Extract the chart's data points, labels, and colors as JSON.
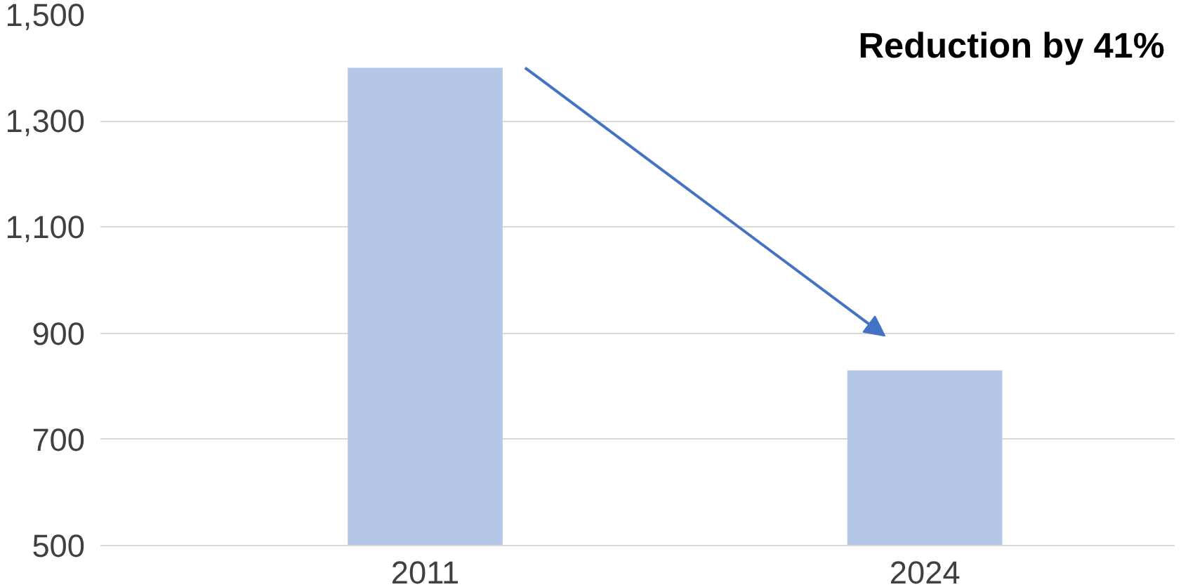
{
  "chart_data": {
    "type": "bar",
    "categories": [
      "2011",
      "2024"
    ],
    "values": [
      1400,
      830
    ],
    "color": "#b4c7e7",
    "ylim": [
      500,
      1500
    ],
    "yticks": [
      {
        "value": 500,
        "label": "500"
      },
      {
        "value": 700,
        "label": "700"
      },
      {
        "value": 900,
        "label": "900"
      },
      {
        "value": 1100,
        "label": "1,100"
      },
      {
        "value": 1300,
        "label": "1,300"
      },
      {
        "value": 1500,
        "label": "1,500"
      }
    ],
    "grid": "y",
    "annotations": [
      "Reduction by 41%"
    ]
  }
}
